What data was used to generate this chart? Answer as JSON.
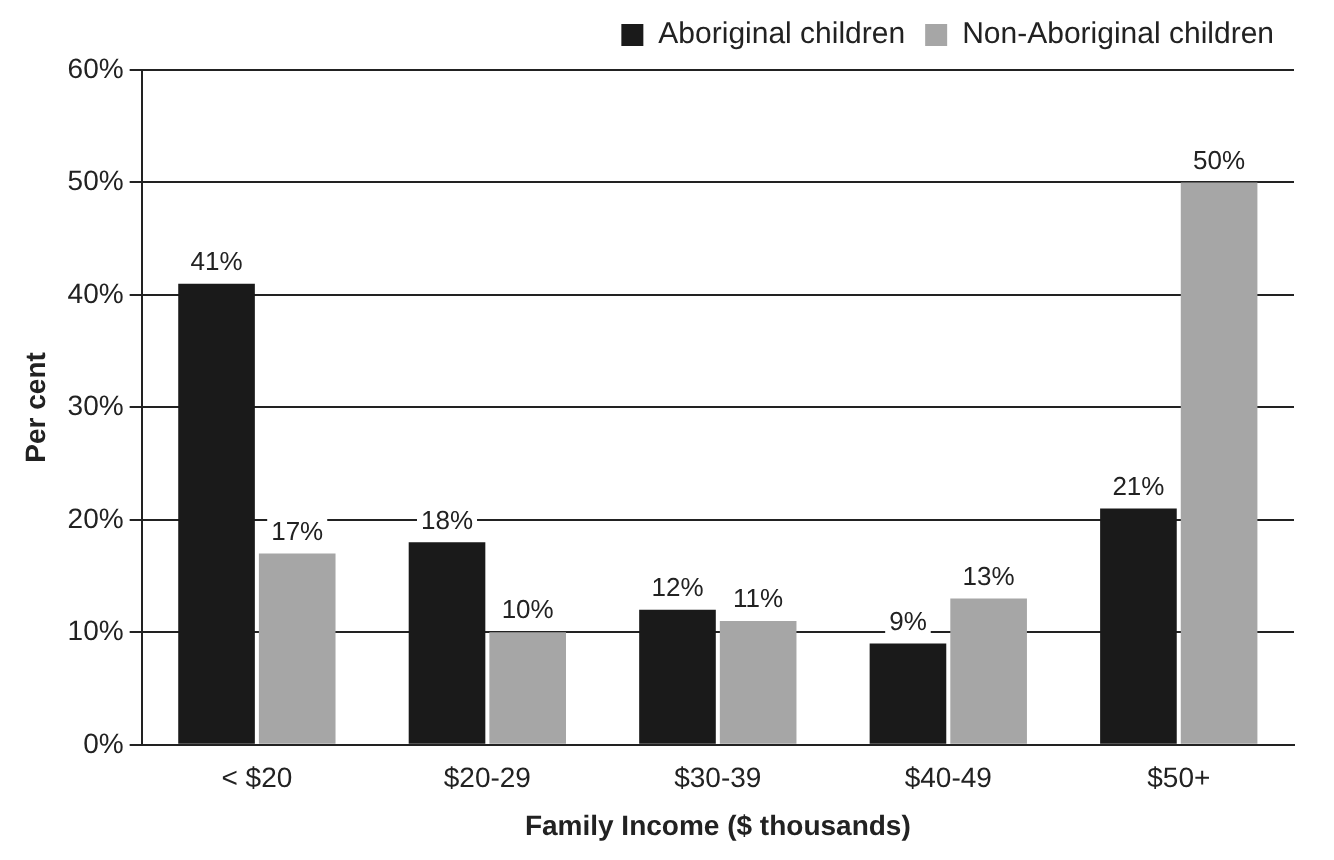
{
  "chart_data": {
    "type": "bar",
    "xlabel": "Family Income ($ thousands)",
    "ylabel": "Per cent",
    "categories": [
      "< $20",
      "$20-29",
      "$30-39",
      "$40-49",
      "$50+"
    ],
    "series": [
      {
        "name": "Aboriginal children",
        "color": "#1a1a1a",
        "values": [
          41,
          18,
          12,
          9,
          21
        ],
        "value_labels": [
          "41%",
          "18%",
          "12%",
          "9%",
          "21%"
        ]
      },
      {
        "name": "Non-Aboriginal children",
        "color": "#a6a6a6",
        "values": [
          17,
          10,
          11,
          13,
          50
        ],
        "value_labels": [
          "17%",
          "10%",
          "11%",
          "13%",
          "50%"
        ]
      }
    ],
    "ylim": [
      0,
      60
    ],
    "yticks": [
      {
        "value": 0,
        "label": "0%"
      },
      {
        "value": 10,
        "label": "10%"
      },
      {
        "value": 20,
        "label": "20%"
      },
      {
        "value": 30,
        "label": "30%"
      },
      {
        "value": 40,
        "label": "40%"
      },
      {
        "value": 50,
        "label": "50%"
      },
      {
        "value": 60,
        "label": "60%"
      }
    ],
    "grid": "y",
    "legend": "top right"
  }
}
